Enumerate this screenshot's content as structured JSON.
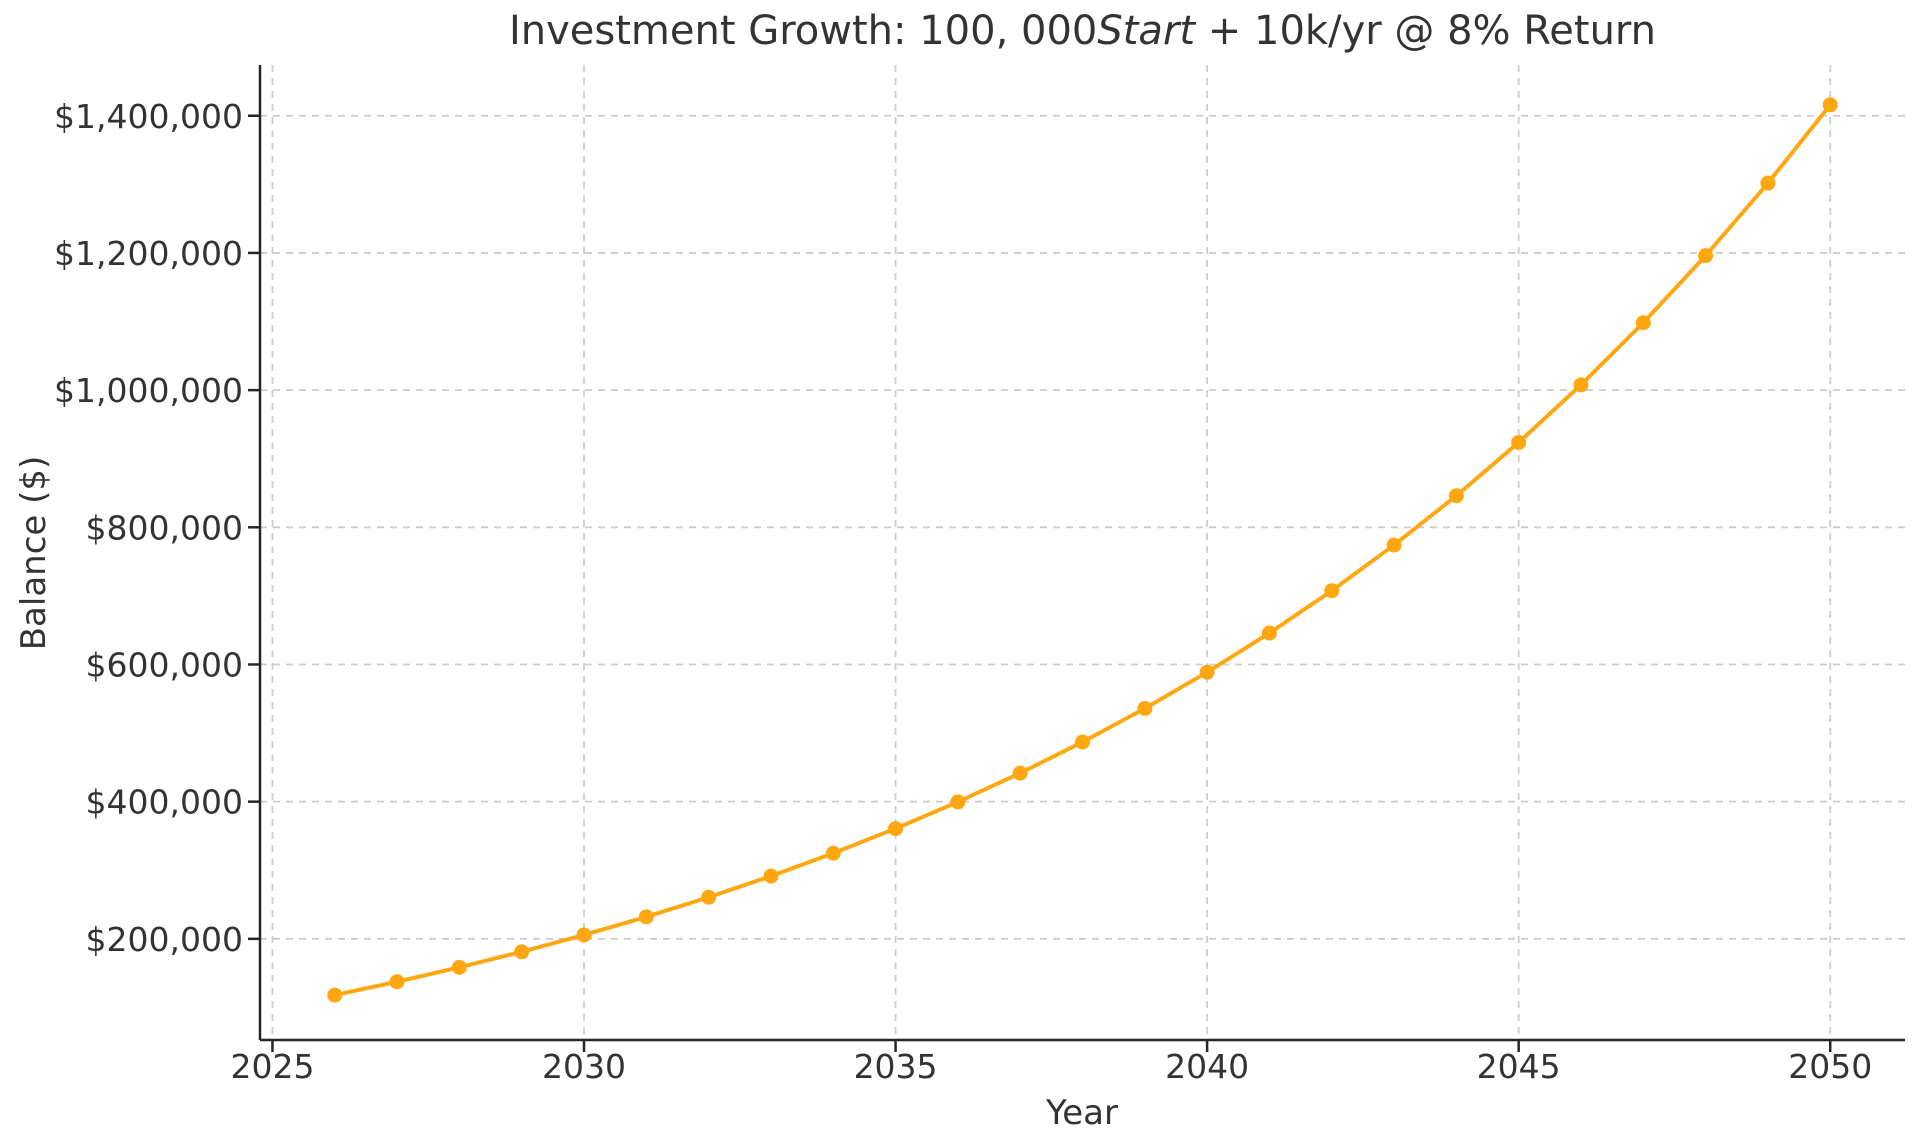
{
  "figure": {
    "background": "#ffffff",
    "text_color": "#333333",
    "title": {
      "prefix": "Investment Growth: 100, 000",
      "italic": "Start",
      "suffix": " + 10k/yr @ 8% Return"
    }
  },
  "chart_data": {
    "type": "line",
    "title": "Investment Growth: 100, 000Start + 10k/yr @ 8% Return",
    "xlabel": "Year",
    "ylabel": "Balance ($)",
    "series": [
      {
        "name": "balance",
        "color": "#FFA710",
        "marker": "circle",
        "x": [
          2026,
          2027,
          2028,
          2029,
          2030,
          2031,
          2032,
          2033,
          2034,
          2035,
          2036,
          2037,
          2038,
          2039,
          2040,
          2041,
          2042,
          2043,
          2044,
          2045,
          2046,
          2047,
          2048,
          2049,
          2050
        ],
        "y": [
          118000,
          137440,
          158435,
          181110,
          205599,
          232047,
          260610,
          291459,
          324776,
          360758,
          399619,
          441588,
          486915,
          535869,
          588738,
          645837,
          707504,
          774104,
          846033,
          923715,
          1007613,
          1098222,
          1196079,
          1301766,
          1415907
        ]
      }
    ],
    "x_ticks": [
      2025,
      2030,
      2035,
      2040,
      2045,
      2050
    ],
    "x_tick_labels": [
      "2025",
      "2030",
      "2035",
      "2040",
      "2045",
      "2050"
    ],
    "y_ticks": [
      200000,
      400000,
      600000,
      800000,
      1000000,
      1200000,
      1400000
    ],
    "y_tick_labels": [
      "$200,000",
      "$400,000",
      "$600,000",
      "$800,000",
      "$1,000,000",
      "$1,200,000",
      "$1,400,000"
    ],
    "xlim": [
      2024.8,
      2051.2
    ],
    "ylim": [
      52500,
      1474000
    ],
    "grid": true,
    "grid_style": "dashed",
    "grid_color": "#cccccc",
    "axis_color": "#262626",
    "legend": "none"
  }
}
